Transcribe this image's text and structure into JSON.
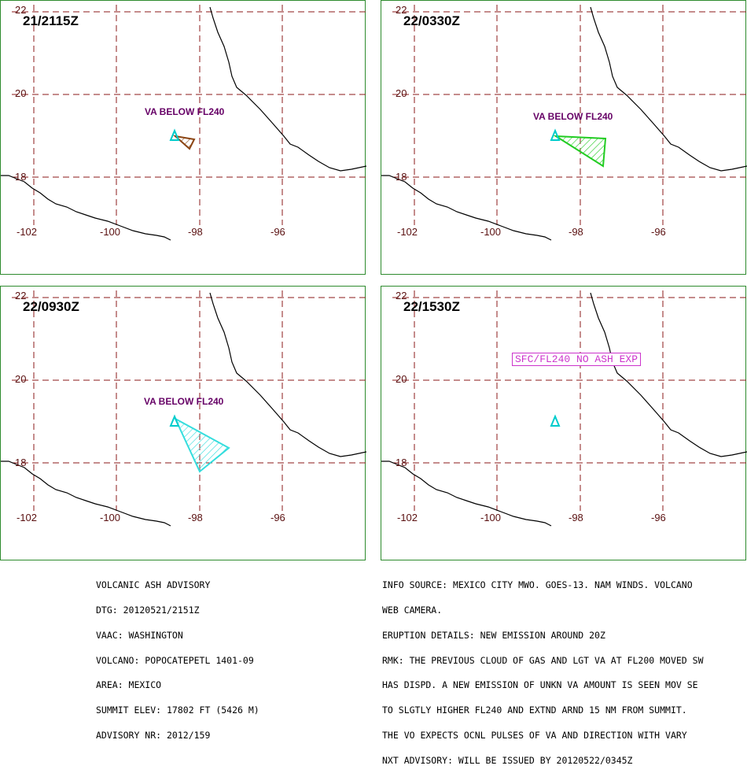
{
  "panels": [
    {
      "time": "21/2115Z",
      "va_label": "VA BELOW FL240",
      "shape": "brown"
    },
    {
      "time": "22/0330Z",
      "va_label": "VA BELOW FL240",
      "shape": "green"
    },
    {
      "time": "22/0930Z",
      "va_label": "VA BELOW FL240",
      "shape": "cyan"
    },
    {
      "time": "22/1530Z",
      "va_label": "SFC/FL240 NO ASH EXP",
      "shape": "none"
    }
  ],
  "grid_labels": {
    "lat_22": "22",
    "lat_20": "20",
    "lat_18": "18",
    "lon_102": "-102",
    "lon_100": "-100",
    "lon_98": "-98",
    "lon_96": "-96"
  },
  "colors": {
    "grid": "#8b1a1a",
    "coast": "#000000",
    "volcano": "#00cccc",
    "brown_cloud": "#8b4513",
    "green_cloud": "#22cc22",
    "cyan_cloud": "#33dddd",
    "frame": "#2e8b2e"
  },
  "advisory_left": [
    "VOLCANIC ASH ADVISORY",
    "DTG: 20120521/2151Z",
    "VAAC: WASHINGTON",
    "VOLCANO: POPOCATEPETL 1401-09",
    "AREA: MEXICO",
    "SUMMIT ELEV: 17802 FT (5426 M)",
    "ADVISORY NR: 2012/159"
  ],
  "advisory_right": [
    "INFO SOURCE: MEXICO CITY MWO. GOES-13. NAM WINDS. VOLCANO",
    "WEB CAMERA.",
    "ERUPTION DETAILS: NEW EMISSION AROUND 20Z",
    "RMK: THE PREVIOUS CLOUD OF GAS AND LGT VA AT FL200 MOVED SW",
    "HAS DISPD. A NEW EMISSION OF UNKN VA AMOUNT IS SEEN MOV SE",
    "TO SLGTLY HIGHER FL240 AND EXTND ARND 15 NM FROM SUMMIT.",
    "THE VO EXPECTS OCNL PULSES OF VA AND DIRECTION WITH VARY",
    "NXT ADVISORY: WILL BE ISSUED BY 20120522/0345Z"
  ]
}
